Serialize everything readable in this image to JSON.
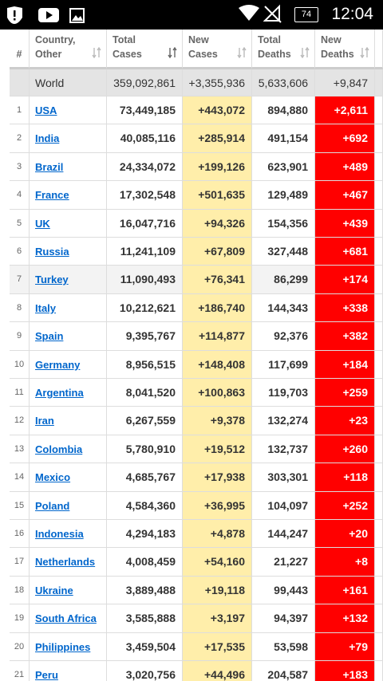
{
  "status_bar": {
    "battery": "74",
    "time": "12:04"
  },
  "table": {
    "headers": [
      [
        "#"
      ],
      [
        "Country,",
        "Other"
      ],
      [
        "Total",
        "Cases"
      ],
      [
        "New",
        "Cases"
      ],
      [
        "Total",
        "Deaths"
      ],
      [
        "New",
        "Deaths"
      ]
    ],
    "world": [
      "",
      "World",
      "359,092,861",
      "+3,355,936",
      "5,633,606",
      "+9,847"
    ],
    "rows": [
      [
        "1",
        "USA",
        "73,449,185",
        "+443,072",
        "894,880",
        "+2,611"
      ],
      [
        "2",
        "India",
        "40,085,116",
        "+285,914",
        "491,154",
        "+692"
      ],
      [
        "3",
        "Brazil",
        "24,334,072",
        "+199,126",
        "623,901",
        "+489"
      ],
      [
        "4",
        "France",
        "17,302,548",
        "+501,635",
        "129,489",
        "+467"
      ],
      [
        "5",
        "UK",
        "16,047,716",
        "+94,326",
        "154,356",
        "+439"
      ],
      [
        "6",
        "Russia",
        "11,241,109",
        "+67,809",
        "327,448",
        "+681"
      ],
      [
        "7",
        "Turkey",
        "11,090,493",
        "+76,341",
        "86,299",
        "+174"
      ],
      [
        "8",
        "Italy",
        "10,212,621",
        "+186,740",
        "144,343",
        "+338"
      ],
      [
        "9",
        "Spain",
        "9,395,767",
        "+114,877",
        "92,376",
        "+382"
      ],
      [
        "10",
        "Germany",
        "8,956,515",
        "+148,408",
        "117,699",
        "+184"
      ],
      [
        "11",
        "Argentina",
        "8,041,520",
        "+100,863",
        "119,703",
        "+259"
      ],
      [
        "12",
        "Iran",
        "6,267,559",
        "+9,378",
        "132,274",
        "+23"
      ],
      [
        "13",
        "Colombia",
        "5,780,910",
        "+19,512",
        "132,737",
        "+260"
      ],
      [
        "14",
        "Mexico",
        "4,685,767",
        "+17,938",
        "303,301",
        "+118"
      ],
      [
        "15",
        "Poland",
        "4,584,360",
        "+36,995",
        "104,097",
        "+252"
      ],
      [
        "16",
        "Indonesia",
        "4,294,183",
        "+4,878",
        "144,247",
        "+20"
      ],
      [
        "17",
        "Netherlands",
        "4,008,459",
        "+54,160",
        "21,227",
        "+8"
      ],
      [
        "18",
        "Ukraine",
        "3,889,488",
        "+19,118",
        "99,443",
        "+161"
      ],
      [
        "19",
        "South Africa",
        "3,585,888",
        "+3,197",
        "94,397",
        "+132"
      ],
      [
        "20",
        "Philippines",
        "3,459,504",
        "+17,535",
        "53,598",
        "+79"
      ],
      [
        "21",
        "Peru",
        "3,020,756",
        "+44,496",
        "204,587",
        "+183"
      ]
    ]
  }
}
